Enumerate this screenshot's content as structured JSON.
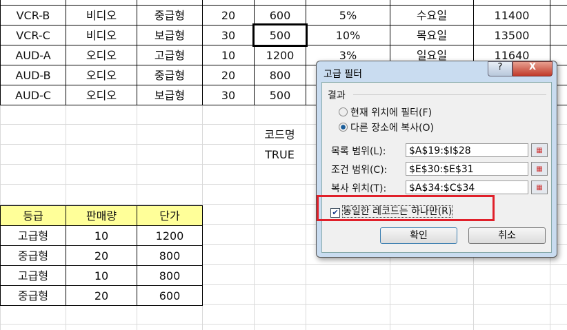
{
  "top_table": {
    "rows": [
      [
        "VCR-B",
        "비디오",
        "중급형",
        "20",
        "600",
        "5%",
        "수요일",
        "11400"
      ],
      [
        "VCR-C",
        "비디오",
        "보급형",
        "30",
        "500",
        "10%",
        "목요일",
        "13500"
      ],
      [
        "AUD-A",
        "오디오",
        "고급형",
        "10",
        "1200",
        "3%",
        "일요일",
        "11640"
      ],
      [
        "AUD-B",
        "오디오",
        "중급형",
        "20",
        "800",
        "",
        "",
        " "
      ],
      [
        "AUD-C",
        "오디오",
        "보급형",
        "30",
        "500",
        "",
        "",
        ""
      ]
    ]
  },
  "criteria": {
    "header": "코드명",
    "value": "TRUE"
  },
  "result_table": {
    "headers": [
      "등급",
      "판매량",
      "단가"
    ],
    "rows": [
      [
        "고급형",
        "10",
        "1200"
      ],
      [
        "중급형",
        "20",
        "800"
      ],
      [
        "고급형",
        "10",
        "800"
      ],
      [
        "중급형",
        "20",
        "600"
      ]
    ]
  },
  "dialog": {
    "title": "고급 필터",
    "help": "?",
    "close": "X",
    "group": "결과",
    "radio_filter": "현재 위치에 필터(F)",
    "radio_copy": "다른 장소에 복사(O)",
    "selected": "copy",
    "list_label": "목록 범위(L):",
    "list_value": "$A$19:$I$28",
    "criteria_label": "조건 범위(C):",
    "criteria_value": "$E$30:$E$31",
    "copy_label": "복사 위치(T):",
    "copy_value": "$A$34:$C$34",
    "unique_label": "동일한 레코드는 하나만(R)",
    "unique_checked": true,
    "ok": "확인",
    "cancel": "취소",
    "highlight_color": "#e0202a"
  }
}
